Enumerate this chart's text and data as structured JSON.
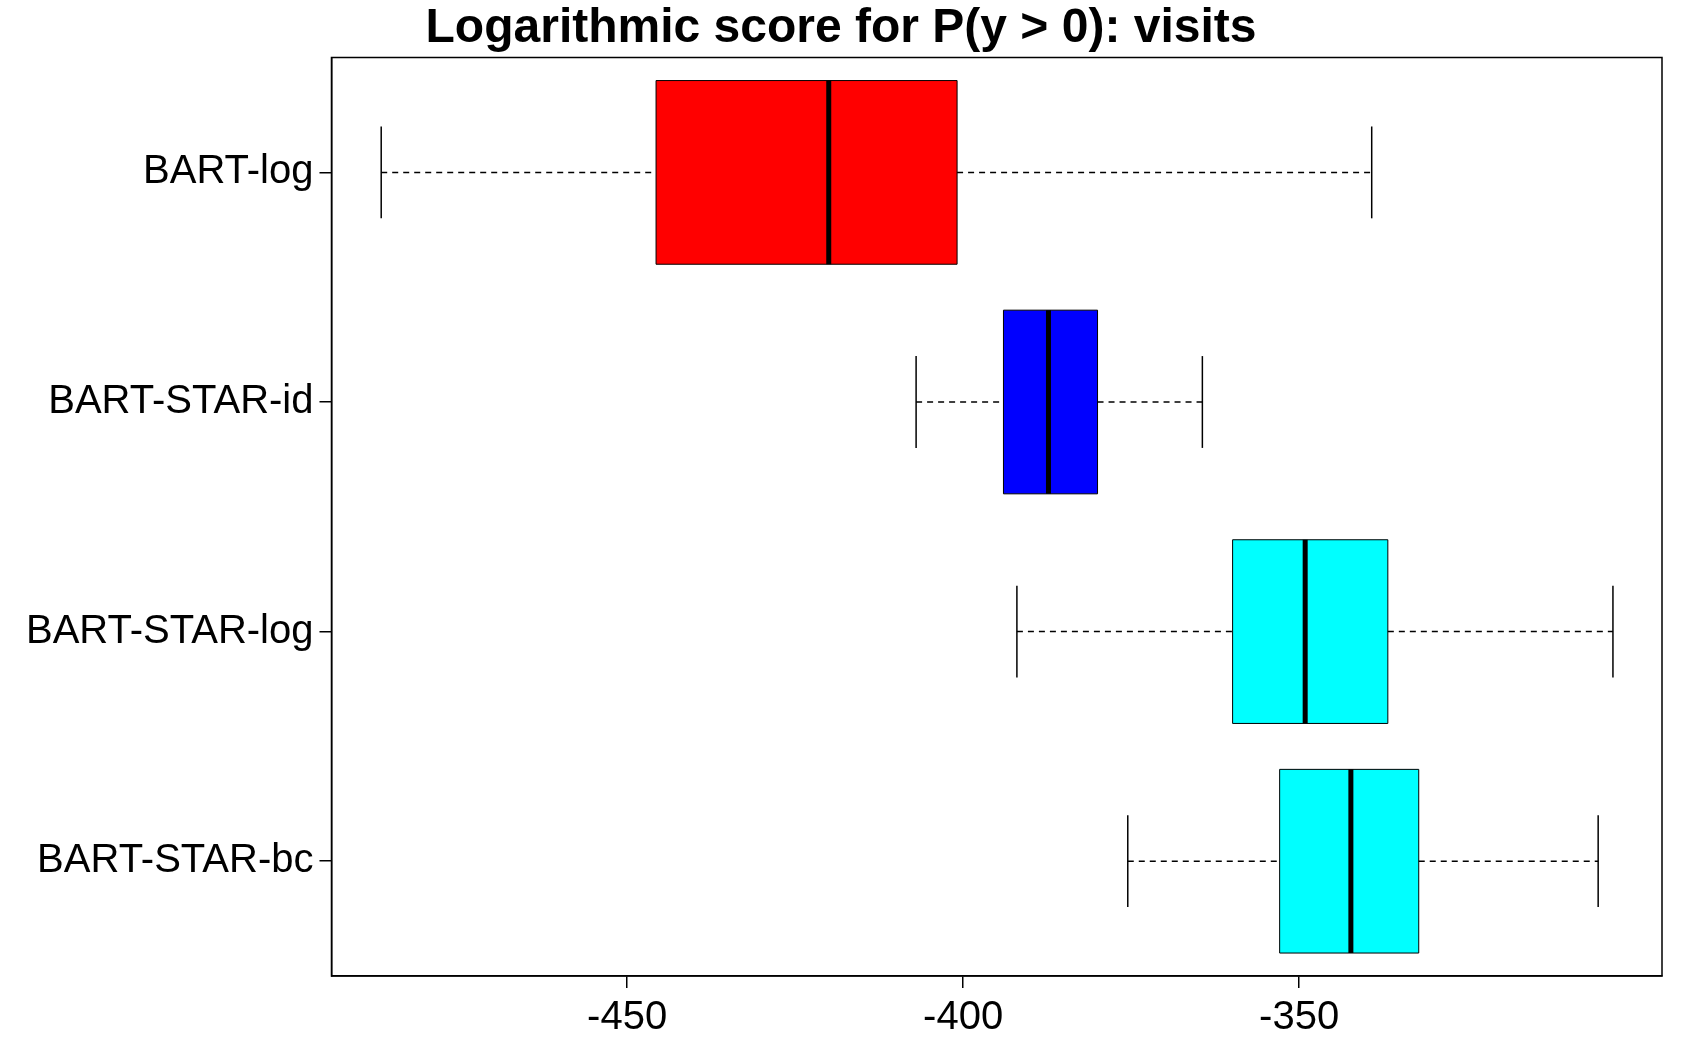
{
  "chart_data": {
    "type": "box",
    "title": "Logarithmic score for P(y > 0): visits",
    "orientation": "horizontal",
    "categories": [
      "BART-log",
      "BART-STAR-id",
      "BART-STAR-log",
      "BART-STAR-bc"
    ],
    "boxes": [
      {
        "low": -486.6,
        "q1": -445.7,
        "median": -420.0,
        "q3": -400.9,
        "high": -339.2
      },
      {
        "low": -407.0,
        "q1": -394.0,
        "median": -387.3,
        "q3": -380.0,
        "high": -364.4
      },
      {
        "low": -392.0,
        "q1": -359.9,
        "median": -349.1,
        "q3": -336.8,
        "high": -303.3
      },
      {
        "low": -375.5,
        "q1": -352.9,
        "median": -342.3,
        "q3": -332.2,
        "high": -305.5
      }
    ],
    "colors": [
      "#ff0000",
      "#0000ff",
      "#00ffff",
      "#00ffff"
    ],
    "xlim": [
      -494,
      -296
    ],
    "xticks": [
      -450,
      -400,
      -350
    ]
  }
}
